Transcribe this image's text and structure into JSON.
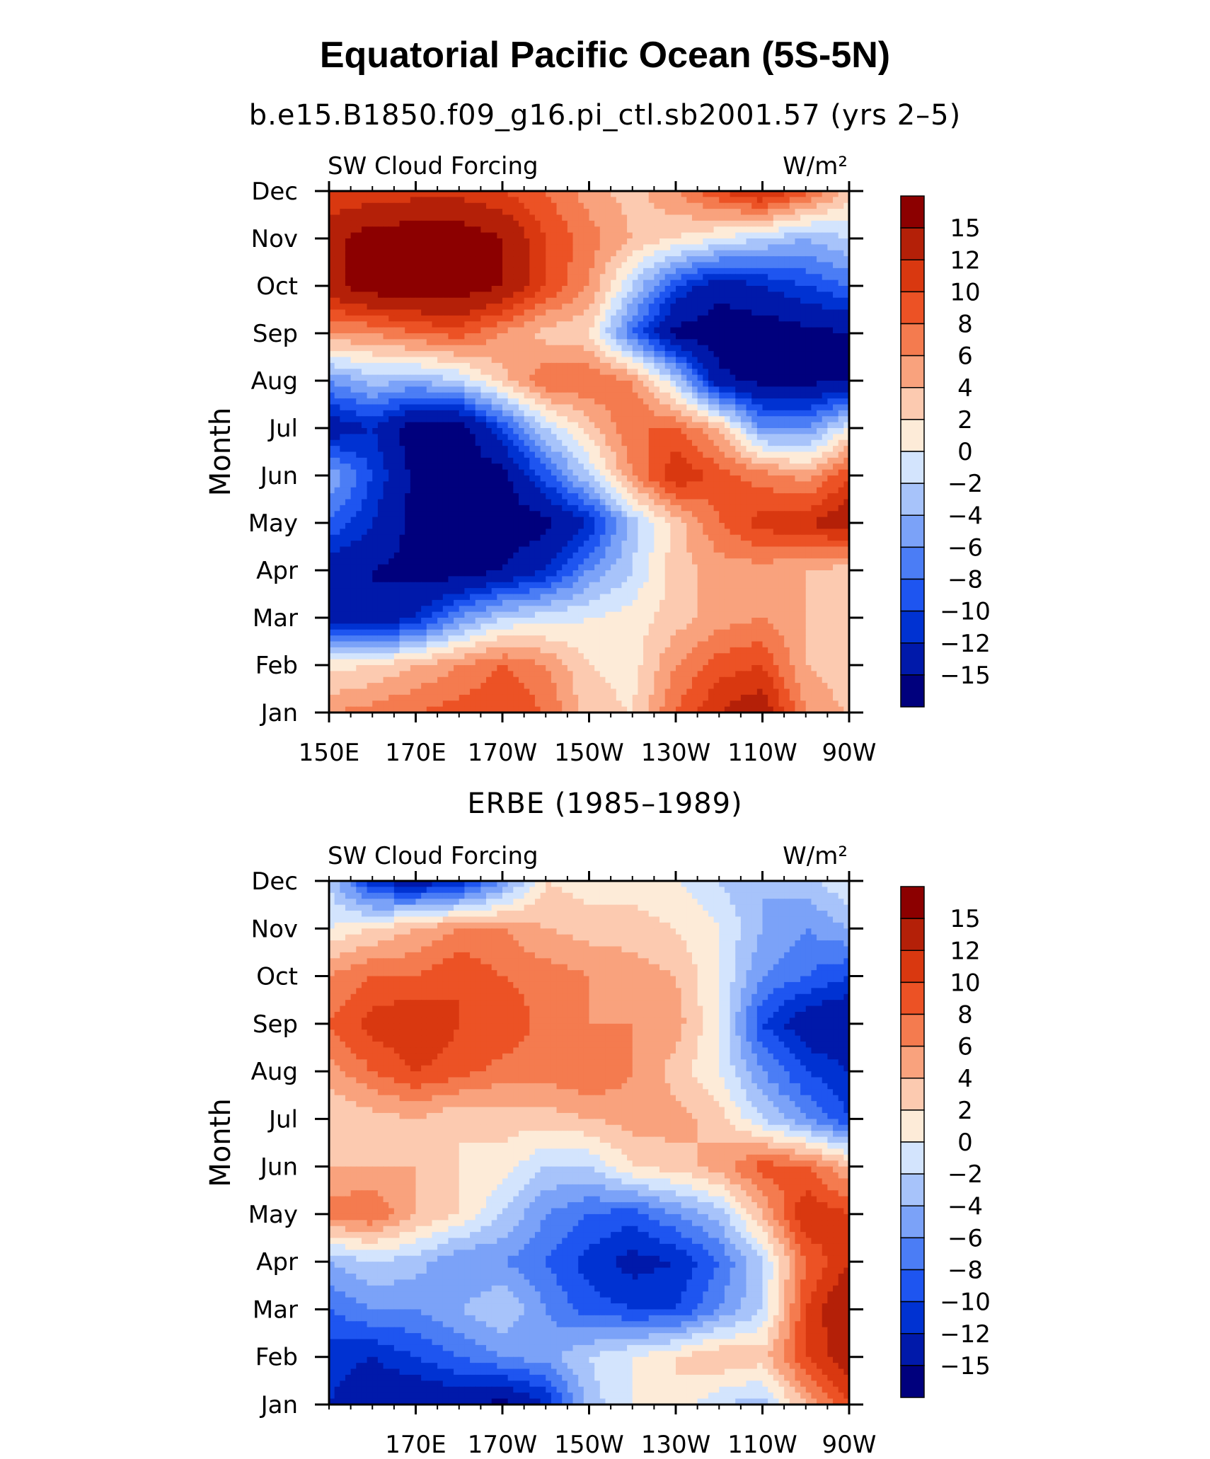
{
  "title": "Equatorial Pacific Ocean (5S-5N)",
  "colors": {
    "levels": [
      "#00007d",
      "#0019aa",
      "#0032d2",
      "#1e55f0",
      "#4b7df5",
      "#7ba2f8",
      "#a7c3fa",
      "#d3e4fd",
      "#fdebd8",
      "#fccab0",
      "#f9a27d",
      "#f47b4f",
      "#ec5225",
      "#d93810",
      "#b42008",
      "#8c0000"
    ]
  },
  "chart_data": [
    {
      "type": "heatmap",
      "subtitle": "b.e15.B1850.f09_g16.pi_ctl.sb2001.57 (yrs 2–5)",
      "left_string": "SW Cloud Forcing",
      "right_string": "W/m²",
      "ylabel": "Month",
      "x_ticks": [
        "150E",
        "170E",
        "170W",
        "150W",
        "130W",
        "110W",
        "90W"
      ],
      "x_ticks_units_deg_east": [
        150,
        170,
        190,
        210,
        230,
        250,
        270
      ],
      "xlim": [
        150,
        270
      ],
      "y_ticks": [
        "Jan",
        "Feb",
        "Mar",
        "Apr",
        "May",
        "Jun",
        "Jul",
        "Aug",
        "Sep",
        "Oct",
        "Nov",
        "Dec"
      ],
      "colorbar_labels": [
        "15",
        "12",
        "10",
        "8",
        "6",
        "4",
        "2",
        "0",
        "−2",
        "−4",
        "−6",
        "−8",
        "−10",
        "−12",
        "−15"
      ],
      "grid_x": [
        150,
        160,
        170,
        180,
        190,
        200,
        210,
        220,
        230,
        240,
        250,
        260,
        270
      ],
      "grid_values": [
        [
          6,
          7,
          8,
          9,
          10,
          8,
          3,
          2,
          8,
          12,
          14,
          6,
          4
        ],
        [
          1,
          2,
          4,
          6,
          8,
          6,
          2,
          1,
          6,
          9,
          10,
          4,
          2
        ],
        [
          -14,
          -15,
          -12,
          -6,
          -2,
          -1,
          0,
          1,
          3,
          5,
          6,
          4,
          3
        ],
        [
          -14,
          -15,
          -16,
          -17,
          -15,
          -12,
          -6,
          -2,
          3,
          5,
          5,
          4,
          3
        ],
        [
          -8,
          -12,
          -16,
          -17,
          -17,
          -16,
          -12,
          -3,
          3,
          8,
          11,
          12,
          14
        ],
        [
          -4,
          -10,
          -16,
          -17,
          -16,
          -9,
          -2,
          6,
          12,
          9,
          7,
          5,
          10
        ],
        [
          -14,
          -12,
          -17,
          -17,
          -10,
          -2,
          3,
          8,
          8,
          4,
          -6,
          -6,
          0
        ],
        [
          -6,
          -3,
          -4,
          -2,
          3,
          8,
          8,
          6,
          -2,
          -14,
          -16,
          -16,
          -15
        ],
        [
          6,
          6,
          8,
          9,
          6,
          3,
          2,
          -8,
          -16,
          -17,
          -17,
          -16,
          -15
        ],
        [
          14,
          17,
          17,
          17,
          15,
          10,
          6,
          -2,
          -10,
          -14,
          -12,
          -10,
          -8
        ],
        [
          14,
          17,
          17,
          17,
          15,
          10,
          7,
          4,
          2,
          0,
          -2,
          -4,
          -2
        ],
        [
          10,
          10,
          11,
          11,
          10,
          8,
          5,
          3,
          6,
          10,
          13,
          9,
          3
        ]
      ]
    },
    {
      "type": "heatmap",
      "subtitle": "ERBE (1985–1989)",
      "left_string": "SW Cloud Forcing",
      "right_string": "W/m²",
      "ylabel": "Month",
      "x_ticks": [
        "170E",
        "170W",
        "150W",
        "130W",
        "110W",
        "90W"
      ],
      "x_ticks_units_deg_east": [
        170,
        190,
        210,
        230,
        250,
        270
      ],
      "xlim": [
        150,
        270
      ],
      "y_ticks": [
        "Jan",
        "Feb",
        "Mar",
        "Apr",
        "May",
        "Jun",
        "Jul",
        "Aug",
        "Sep",
        "Oct",
        "Nov",
        "Dec"
      ],
      "colorbar_labels": [
        "15",
        "12",
        "10",
        "8",
        "6",
        "4",
        "2",
        "0",
        "−2",
        "−4",
        "−6",
        "−8",
        "−10",
        "−12",
        "−15"
      ],
      "grid_x": [
        150,
        160,
        170,
        180,
        190,
        200,
        210,
        220,
        230,
        240,
        250,
        260,
        270
      ],
      "grid_values": [
        [
          -12,
          -14,
          -15,
          -14,
          -16,
          -12,
          -3,
          0,
          2,
          -2,
          -3,
          4,
          10
        ],
        [
          -11,
          -12,
          -10,
          -8,
          -6,
          -5,
          -2,
          0,
          2,
          4,
          3,
          10,
          14
        ],
        [
          -8,
          -6,
          -6,
          -4,
          -2,
          -6,
          -9,
          -10,
          -10,
          -6,
          -2,
          10,
          15
        ],
        [
          -4,
          -2,
          -3,
          -6,
          -6,
          -8,
          -11,
          -13,
          -12,
          -8,
          -2,
          8,
          12
        ],
        [
          7,
          8,
          4,
          2,
          -2,
          -6,
          -8,
          -9,
          -6,
          -3,
          4,
          12,
          10
        ],
        [
          4,
          4,
          4,
          2,
          1,
          -2,
          -2,
          2,
          3,
          5,
          9,
          8,
          4
        ],
        [
          2,
          3,
          4,
          2,
          3,
          3,
          4,
          5,
          5,
          3,
          -2,
          -6,
          -10
        ],
        [
          5,
          8,
          10,
          9,
          7,
          7,
          8,
          6,
          3,
          0,
          -6,
          -10,
          -12
        ],
        [
          8,
          11,
          12,
          10,
          10,
          7,
          6,
          6,
          5,
          0,
          -10,
          -14,
          -15
        ],
        [
          6,
          8,
          8,
          10,
          8,
          7,
          6,
          5,
          4,
          0,
          -6,
          -8,
          -10
        ],
        [
          0,
          2,
          4,
          6,
          6,
          4,
          3,
          3,
          2,
          0,
          -4,
          -6,
          -4
        ],
        [
          -2,
          -12,
          -14,
          -12,
          -6,
          2,
          1,
          1,
          0,
          -2,
          -4,
          -3,
          0
        ]
      ]
    }
  ]
}
